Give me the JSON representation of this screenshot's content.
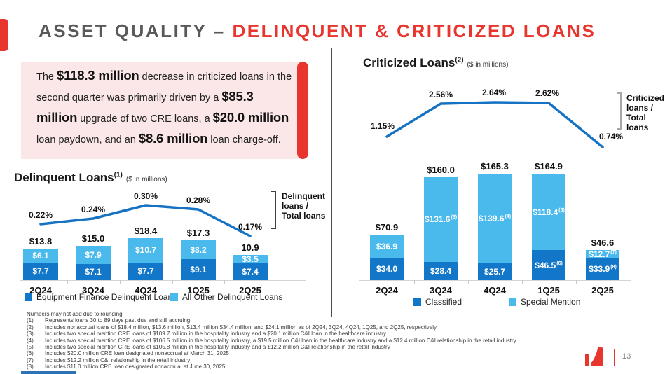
{
  "colors": {
    "accent_red": "#E8352D",
    "pink_bg": "#FBE7E8",
    "dark_blue": "#1377C9",
    "light_blue": "#4ABAEC",
    "line_blue": "#1673C4"
  },
  "slide": {
    "title_gray": "ASSET QUALITY – ",
    "title_red": "DELINQUENT & CRITICIZED LOANS",
    "page_number": "13"
  },
  "callout": {
    "segments": [
      {
        "text": "The ",
        "bold": false
      },
      {
        "text": "$118.3 million",
        "bold": true
      },
      {
        "text": " decrease in criticized loans in the second quarter was primarily driven by a ",
        "bold": false
      },
      {
        "text": "$85.3 million",
        "bold": true
      },
      {
        "text": " upgrade of two CRE loans, a ",
        "bold": false
      },
      {
        "text": "$20.0 million",
        "bold": true
      },
      {
        "text": " loan paydown, and an ",
        "bold": false
      },
      {
        "text": "$8.6 million",
        "bold": true
      },
      {
        "text": " loan charge-off.",
        "bold": false
      }
    ]
  },
  "chart_data": [
    {
      "id": "delinquent-loans",
      "type": "bar",
      "title": "Delinquent Loans",
      "title_sup": "(1)",
      "subtitle": "($ in millions)",
      "categories": [
        "2Q24",
        "3Q24",
        "4Q24",
        "1Q25",
        "2Q25"
      ],
      "series": [
        {
          "name": "Equipment Finance Delinquent Loans",
          "color": "#1377C9",
          "values": [
            7.7,
            7.1,
            7.7,
            9.1,
            7.4
          ],
          "labels": [
            "$7.7",
            "$7.1",
            "$7.7",
            "$9.1",
            "$7.4"
          ],
          "sups": [
            "",
            "",
            "",
            "",
            ""
          ]
        },
        {
          "name": "All Other Delinquent Loans",
          "color": "#4ABAEC",
          "values": [
            6.1,
            7.9,
            10.7,
            8.2,
            3.5
          ],
          "labels": [
            "$6.1",
            "$7.9",
            "$10.7",
            "$8.2",
            "$3.5"
          ],
          "sups": [
            "",
            "",
            "",
            "",
            ""
          ]
        }
      ],
      "totals": [
        13.8,
        15.0,
        18.4,
        17.3,
        10.9
      ],
      "total_labels": [
        "$13.8",
        "$15.0",
        "$18.4",
        "$17.3",
        "10.9"
      ],
      "line": {
        "label": "Delinquent loans / Total loans",
        "color": "#1673C4",
        "values_pct": [
          0.22,
          0.24,
          0.3,
          0.28,
          0.17
        ],
        "point_labels": [
          "0.22%",
          "0.24%",
          "0.30%",
          "0.28%",
          "0.17%"
        ]
      },
      "side_label": [
        "Delinquent",
        "loans /",
        "Total loans"
      ],
      "legend_position": "bottom"
    },
    {
      "id": "criticized-loans",
      "type": "bar",
      "title": "Criticized Loans",
      "title_sup": "(2)",
      "subtitle": "($ in millions)",
      "categories": [
        "2Q24",
        "3Q24",
        "4Q24",
        "1Q25",
        "2Q25"
      ],
      "series": [
        {
          "name": "Classified",
          "color": "#1377C9",
          "values": [
            34.0,
            28.4,
            25.7,
            46.5,
            33.9
          ],
          "labels": [
            "$34.0",
            "$28.4",
            "$25.7",
            "$46.5",
            "$33.9"
          ],
          "sups": [
            "",
            "",
            "",
            "(6)",
            "(8)"
          ]
        },
        {
          "name": "Special Mention",
          "color": "#4ABAEC",
          "values": [
            36.9,
            131.6,
            139.6,
            118.4,
            12.7
          ],
          "labels": [
            "$36.9",
            "$131.6",
            "$139.6",
            "$118.4",
            "$12.7"
          ],
          "sups": [
            "",
            "(3)",
            "(4)",
            "(5)",
            "(7)"
          ]
        }
      ],
      "totals": [
        70.9,
        160.0,
        165.3,
        164.9,
        46.6
      ],
      "total_labels": [
        "$70.9",
        "$160.0",
        "$165.3",
        "$164.9",
        "$46.6"
      ],
      "line": {
        "label": "Criticized loans / Total loans",
        "color": "#1673C4",
        "values_pct": [
          1.15,
          2.56,
          2.64,
          2.62,
          0.74
        ],
        "point_labels": [
          "1.15%",
          "2.56%",
          "2.64%",
          "2.62%",
          "0.74%"
        ]
      },
      "side_label": [
        "Criticized",
        "loans /",
        "Total loans"
      ],
      "legend_position": "bottom"
    }
  ],
  "footnotes": {
    "intro": "Numbers may not add due to rounding",
    "items": [
      {
        "num": "(1)",
        "text": "Represents loans 30 to 89 days past due and still accruing"
      },
      {
        "num": "(2)",
        "text": "Includes nonaccrual loans of $18.4 million, $13.6 million, $13.4 million $34.4 million, and $24.1 million as of 2Q24, 3Q24, 4Q24, 1Q25, and 2Q25, respectively"
      },
      {
        "num": "(3)",
        "text": "Includes two special mention CRE loans of $109.7 million in the hospitality industry and a $20.1 million C&I loan in the healthcare industry"
      },
      {
        "num": "(4)",
        "text": "Includes two special mention CRE loans of $106.5 million in the hospitality industry, a $19.5 million C&I loan in the healthcare industry and a $12.4 million C&I relationship in the retail industry"
      },
      {
        "num": "(5)",
        "text": "Includes two special mention CRE loans of $105.8 million in the hospitality industry and a $12.2 million C&I relationship in the retail industry"
      },
      {
        "num": "(6)",
        "text": "Includes $20.0 million CRE loan designated nonaccrual at March 31, 2025"
      },
      {
        "num": "(7)",
        "text": "Includes $12.2 million C&I relationship in the retail industry"
      },
      {
        "num": "(8)",
        "text": "Includes $11.0 million CRE loan designated nonaccrual at June 30, 2025"
      }
    ]
  }
}
